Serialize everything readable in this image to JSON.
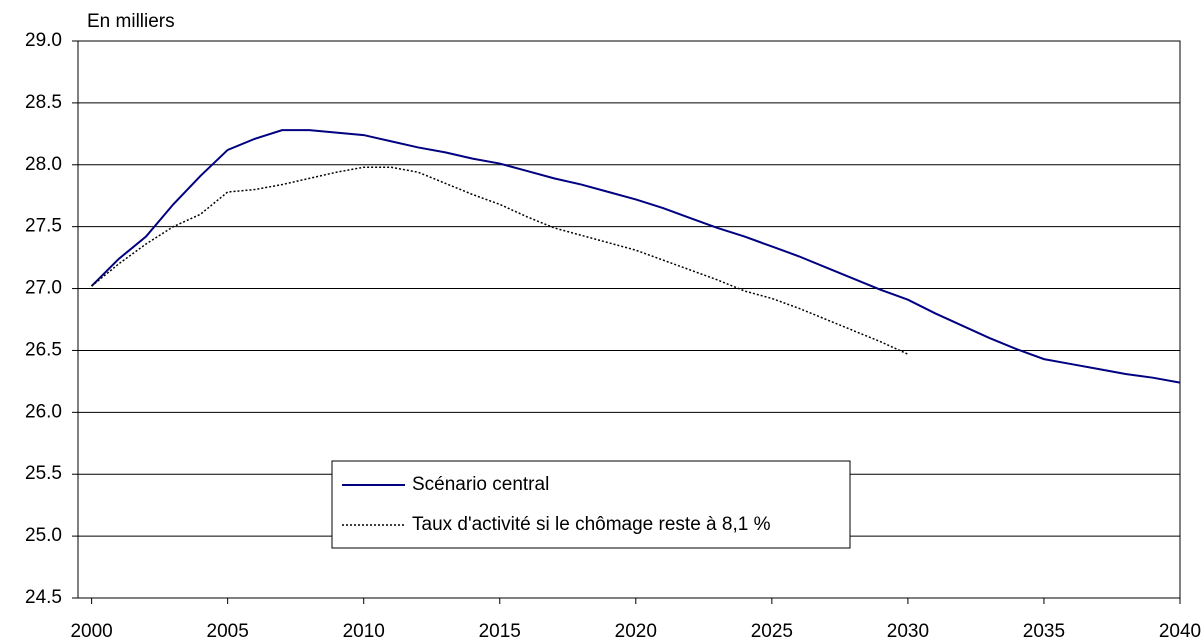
{
  "chart_data": {
    "type": "line",
    "annotation": "En milliers",
    "x": [
      2000,
      2001,
      2002,
      2003,
      2004,
      2005,
      2006,
      2007,
      2008,
      2009,
      2010,
      2011,
      2012,
      2013,
      2014,
      2015,
      2016,
      2017,
      2018,
      2019,
      2020,
      2021,
      2022,
      2023,
      2024,
      2025,
      2026,
      2027,
      2028,
      2029,
      2030,
      2031,
      2032,
      2033,
      2034,
      2035,
      2036,
      2037,
      2038,
      2039,
      2040
    ],
    "series": [
      {
        "name": "Scénario central",
        "color": "#000080",
        "style": "solid",
        "values": [
          27.02,
          27.24,
          27.42,
          27.68,
          27.91,
          28.12,
          28.21,
          28.28,
          28.28,
          28.26,
          28.24,
          28.19,
          28.14,
          28.1,
          28.05,
          28.01,
          27.95,
          27.89,
          27.84,
          27.78,
          27.72,
          27.65,
          27.57,
          27.49,
          27.42,
          27.34,
          27.26,
          27.17,
          27.08,
          26.99,
          26.91,
          26.8,
          26.7,
          26.6,
          26.51,
          26.43,
          26.39,
          26.35,
          26.31,
          26.28,
          26.24
        ]
      },
      {
        "name": "Taux d'activité si le chômage reste à 8,1 %",
        "color": "#000000",
        "style": "dotted",
        "values": [
          27.02,
          27.2,
          27.36,
          27.5,
          27.6,
          27.78,
          27.8,
          27.84,
          27.89,
          27.94,
          27.98,
          27.98,
          27.94,
          27.85,
          27.76,
          27.68,
          27.58,
          27.49,
          27.43,
          27.37,
          27.31,
          27.23,
          27.15,
          27.07,
          26.98,
          26.92,
          26.84,
          26.75,
          26.66,
          26.57,
          26.47,
          null,
          null,
          null,
          null,
          null,
          null,
          null,
          null,
          null,
          null
        ]
      }
    ],
    "xlim": [
      1999.5,
      2040
    ],
    "xticks": [
      2000,
      2005,
      2010,
      2015,
      2020,
      2025,
      2030,
      2035,
      2040
    ],
    "ylim": [
      24.5,
      29
    ],
    "yticks": [
      {
        "value": 24.5,
        "label": "24.5"
      },
      {
        "value": 25,
        "label": "25.0"
      },
      {
        "value": 25.5,
        "label": "25.5"
      },
      {
        "value": 26,
        "label": "26.0"
      },
      {
        "value": 26.5,
        "label": "26.5"
      },
      {
        "value": 27,
        "label": "27.0"
      },
      {
        "value": 27.5,
        "label": "27.5"
      },
      {
        "value": 28,
        "label": "28.0"
      },
      {
        "value": 28.5,
        "label": "28.5"
      },
      {
        "value": 29,
        "label": "29.0"
      }
    ],
    "grid": true
  }
}
